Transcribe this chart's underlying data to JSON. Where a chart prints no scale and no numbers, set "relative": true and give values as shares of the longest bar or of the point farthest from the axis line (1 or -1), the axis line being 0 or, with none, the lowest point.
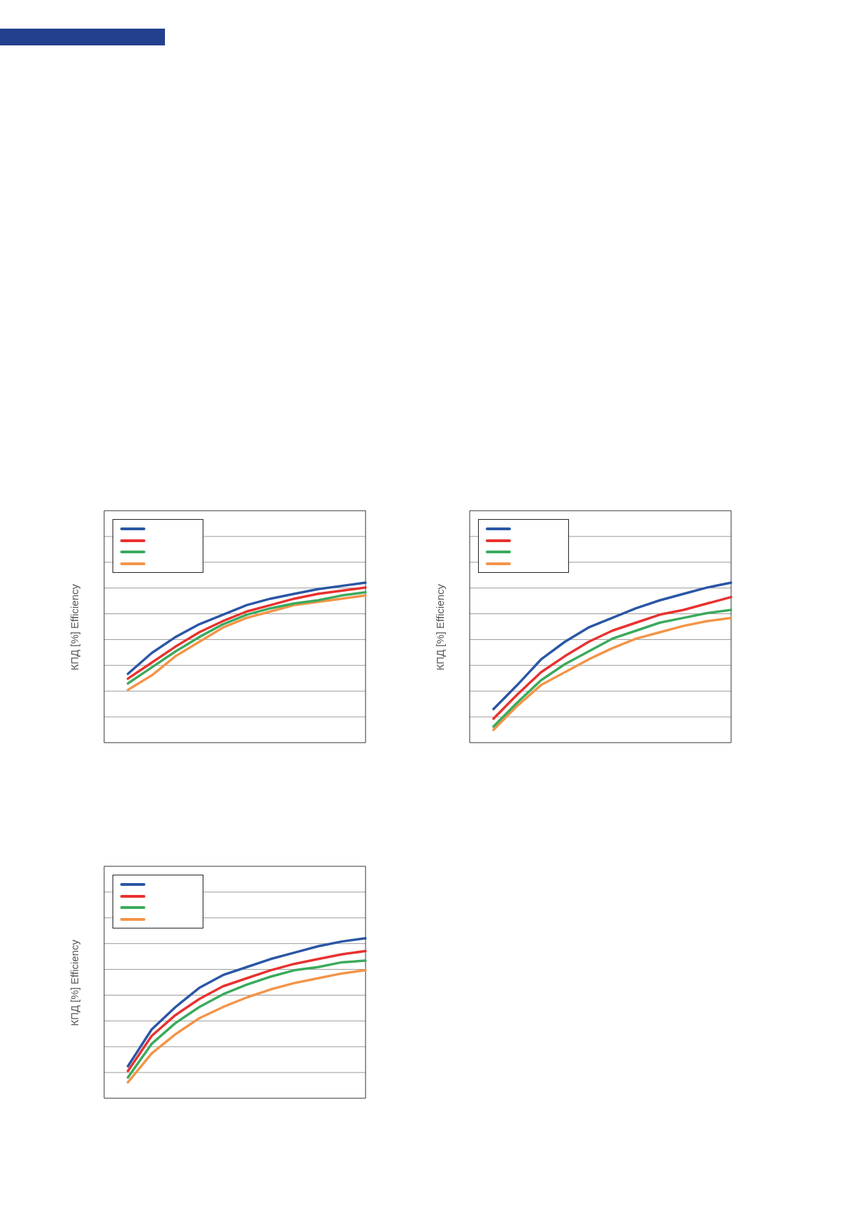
{
  "chart_data": [
    {
      "type": "line",
      "relative": true,
      "ylabel": "КПД [%] Efficiency",
      "grid": "y",
      "categories": [
        null,
        null,
        null,
        null,
        null,
        null,
        null,
        null,
        null,
        null,
        null,
        null
      ],
      "series": [
        {
          "color": "#2a56a5",
          "values": [
            null,
            0.43,
            0.56,
            0.66,
            0.74,
            0.8,
            0.86,
            0.9,
            0.93,
            0.96,
            0.98,
            1
          ]
        },
        {
          "color": "#e8312f",
          "values": [
            null,
            0.4,
            0.5,
            0.6,
            0.69,
            0.76,
            0.82,
            0.86,
            0.9,
            0.93,
            0.95,
            0.97
          ]
        },
        {
          "color": "#3aaa5c",
          "values": [
            null,
            0.37,
            0.47,
            0.57,
            0.66,
            0.74,
            0.8,
            0.84,
            0.87,
            0.89,
            0.92,
            0.94
          ]
        },
        {
          "color": "#f39448",
          "values": [
            null,
            0.33,
            0.42,
            0.54,
            0.63,
            0.72,
            0.78,
            0.82,
            0.86,
            0.88,
            0.9,
            0.92
          ]
        }
      ]
    },
    {
      "type": "line",
      "relative": true,
      "ylabel": "КПД [%] Efficiency",
      "grid": "y",
      "categories": [
        null,
        null,
        null,
        null,
        null,
        null,
        null,
        null,
        null,
        null,
        null,
        null
      ],
      "series": [
        {
          "color": "#2a56a5",
          "values": [
            null,
            0.21,
            0.36,
            0.52,
            0.63,
            0.72,
            0.78,
            0.84,
            0.89,
            0.93,
            0.97,
            1
          ]
        },
        {
          "color": "#e8312f",
          "values": [
            null,
            0.15,
            0.3,
            0.44,
            0.54,
            0.63,
            0.7,
            0.75,
            0.8,
            0.83,
            0.87,
            0.91
          ]
        },
        {
          "color": "#3aaa5c",
          "values": [
            null,
            0.1,
            0.25,
            0.39,
            0.49,
            0.57,
            0.65,
            0.7,
            0.75,
            0.78,
            0.81,
            0.83
          ]
        },
        {
          "color": "#f39448",
          "values": [
            null,
            0.08,
            0.23,
            0.36,
            0.44,
            0.52,
            0.59,
            0.65,
            0.69,
            0.73,
            0.76,
            0.78
          ]
        }
      ]
    },
    {
      "type": "line",
      "relative": true,
      "ylabel": "КПД [%] Efficiency",
      "grid": "y",
      "categories": [
        null,
        null,
        null,
        null,
        null,
        null,
        null,
        null,
        null,
        null,
        null,
        null
      ],
      "series": [
        {
          "color": "#2a56a5",
          "values": [
            null,
            0.2,
            0.43,
            0.57,
            0.69,
            0.77,
            0.82,
            0.87,
            0.91,
            0.95,
            0.98,
            1
          ]
        },
        {
          "color": "#e8312f",
          "values": [
            null,
            0.17,
            0.39,
            0.52,
            0.62,
            0.7,
            0.75,
            0.8,
            0.84,
            0.87,
            0.9,
            0.92
          ]
        },
        {
          "color": "#3aaa5c",
          "values": [
            null,
            0.13,
            0.34,
            0.47,
            0.57,
            0.65,
            0.71,
            0.76,
            0.8,
            0.82,
            0.85,
            0.86
          ]
        },
        {
          "color": "#f39448",
          "values": [
            null,
            0.1,
            0.28,
            0.4,
            0.5,
            0.57,
            0.63,
            0.68,
            0.72,
            0.75,
            0.78,
            0.8
          ]
        }
      ]
    }
  ]
}
